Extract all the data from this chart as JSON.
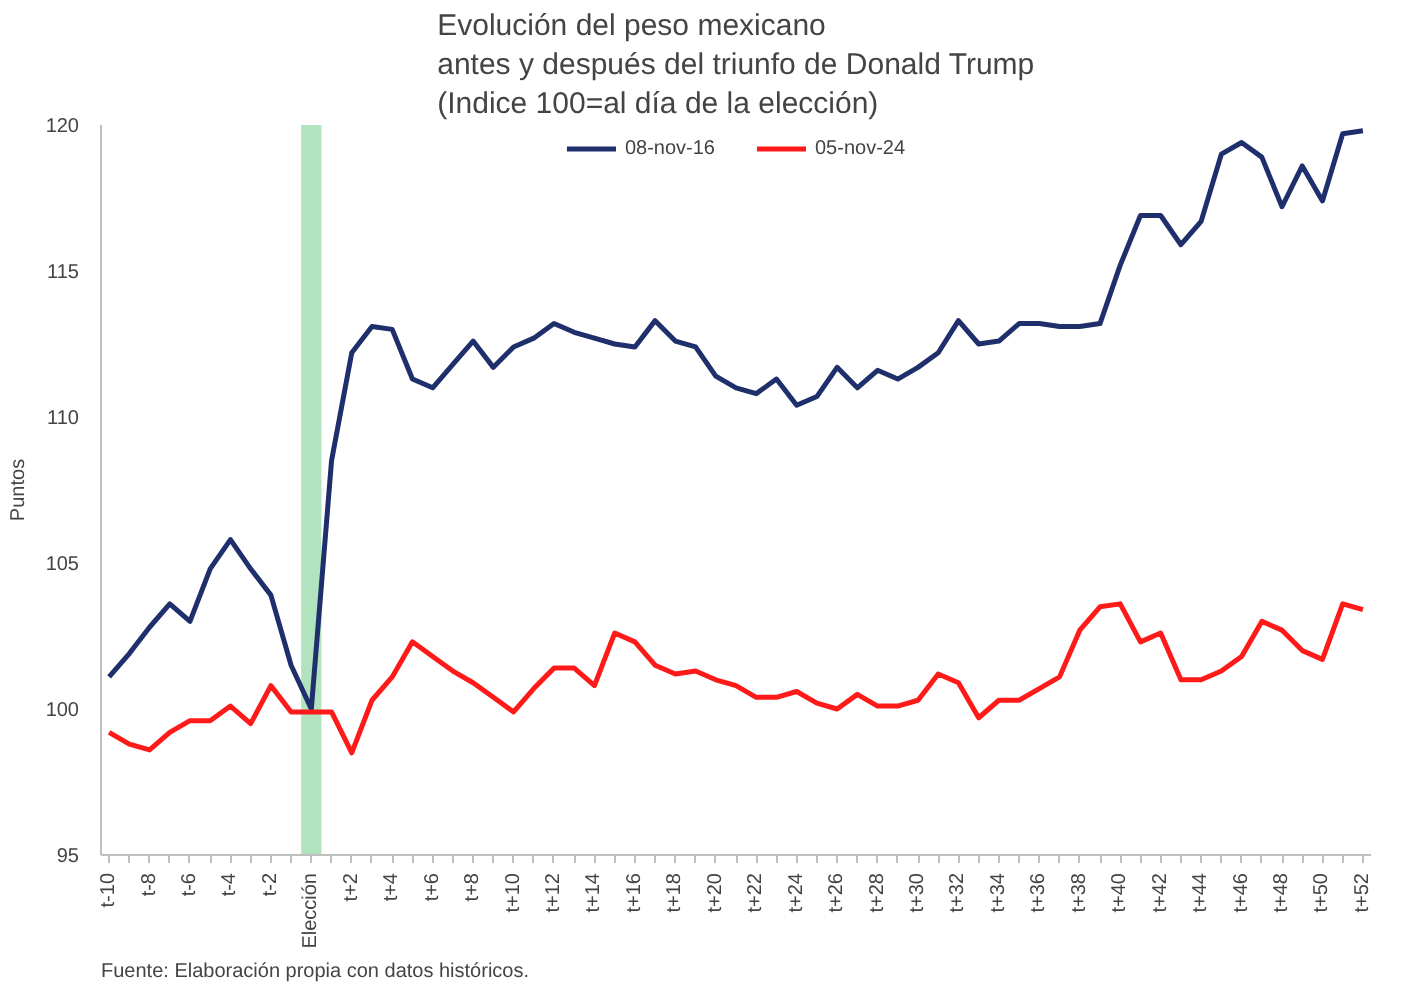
{
  "chart_data": {
    "type": "line",
    "title": "Evolución del peso mexicano\nantes y después del triunfo de Donald Trump\n(Indice 100=al día de la elección)",
    "ylabel": "Puntos",
    "annotations": [
      "Fuente: Elaboración propia con datos históricos."
    ],
    "categories": [
      "t-10",
      null,
      "t-8",
      null,
      "t-6",
      null,
      "t-4",
      null,
      "t-2",
      null,
      "Elección",
      null,
      "t+2",
      null,
      "t+4",
      null,
      "t+6",
      null,
      "t+8",
      null,
      "t+10",
      null,
      "t+12",
      null,
      "t+14",
      null,
      "t+16",
      null,
      "t+18",
      null,
      "t+20",
      null,
      "t+22",
      null,
      "t+24",
      null,
      "t+26",
      null,
      "t+28",
      null,
      "t+30",
      null,
      "t+32",
      null,
      "t+34",
      null,
      "t+36",
      null,
      "t+38",
      null,
      "t+40",
      null,
      "t+42",
      null,
      "t+44",
      null,
      "t+46",
      null,
      "t+48",
      null,
      "t+50",
      null,
      "t+52"
    ],
    "series": [
      {
        "name": "08-nov-16",
        "color": "#1f2f6b",
        "values": [
          101.1,
          101.9,
          102.8,
          103.6,
          103.0,
          104.8,
          105.8,
          104.8,
          103.9,
          101.5,
          100.0,
          108.5,
          112.2,
          113.1,
          113.0,
          111.3,
          111.0,
          111.8,
          112.6,
          111.7,
          112.4,
          112.7,
          113.2,
          112.9,
          112.7,
          112.5,
          112.4,
          113.3,
          112.6,
          112.4,
          111.4,
          111.0,
          110.8,
          111.3,
          110.4,
          110.7,
          111.7,
          111.0,
          111.6,
          111.3,
          111.7,
          112.2,
          113.3,
          112.5,
          112.6,
          113.2,
          113.2,
          113.1,
          113.1,
          113.2,
          115.2,
          116.9,
          116.9,
          115.9,
          116.7,
          119.0,
          119.4,
          118.9,
          117.2,
          118.6,
          117.4,
          119.7,
          119.8
        ]
      },
      {
        "name": "05-nov-24",
        "color": "#ff1a1a",
        "values": [
          99.2,
          98.8,
          98.6,
          99.2,
          99.6,
          99.6,
          100.1,
          99.5,
          100.8,
          99.9,
          99.9,
          99.9,
          98.5,
          100.3,
          101.1,
          102.3,
          101.8,
          101.3,
          100.9,
          100.4,
          99.9,
          100.7,
          101.4,
          101.4,
          100.8,
          102.6,
          102.3,
          101.5,
          101.2,
          101.3,
          101.0,
          100.8,
          100.4,
          100.4,
          100.6,
          100.2,
          100.0,
          100.5,
          100.1,
          100.1,
          100.3,
          101.2,
          100.9,
          99.7,
          100.3,
          100.3,
          100.7,
          101.1,
          102.7,
          103.5,
          103.6,
          102.3,
          102.6,
          101.0,
          101.0,
          101.3,
          101.8,
          103.0,
          102.7,
          102.0,
          101.7,
          103.6,
          103.4
        ]
      }
    ],
    "bands": [
      {
        "axis": "x",
        "from": "Elección",
        "to": "Elección",
        "color": "#a8e0b8"
      }
    ],
    "ylim": [
      95,
      120
    ],
    "yticks": [
      95,
      100,
      105,
      110,
      115,
      120
    ],
    "grid": false,
    "legend": "top",
    "line_style": "solid",
    "marker": "none"
  }
}
